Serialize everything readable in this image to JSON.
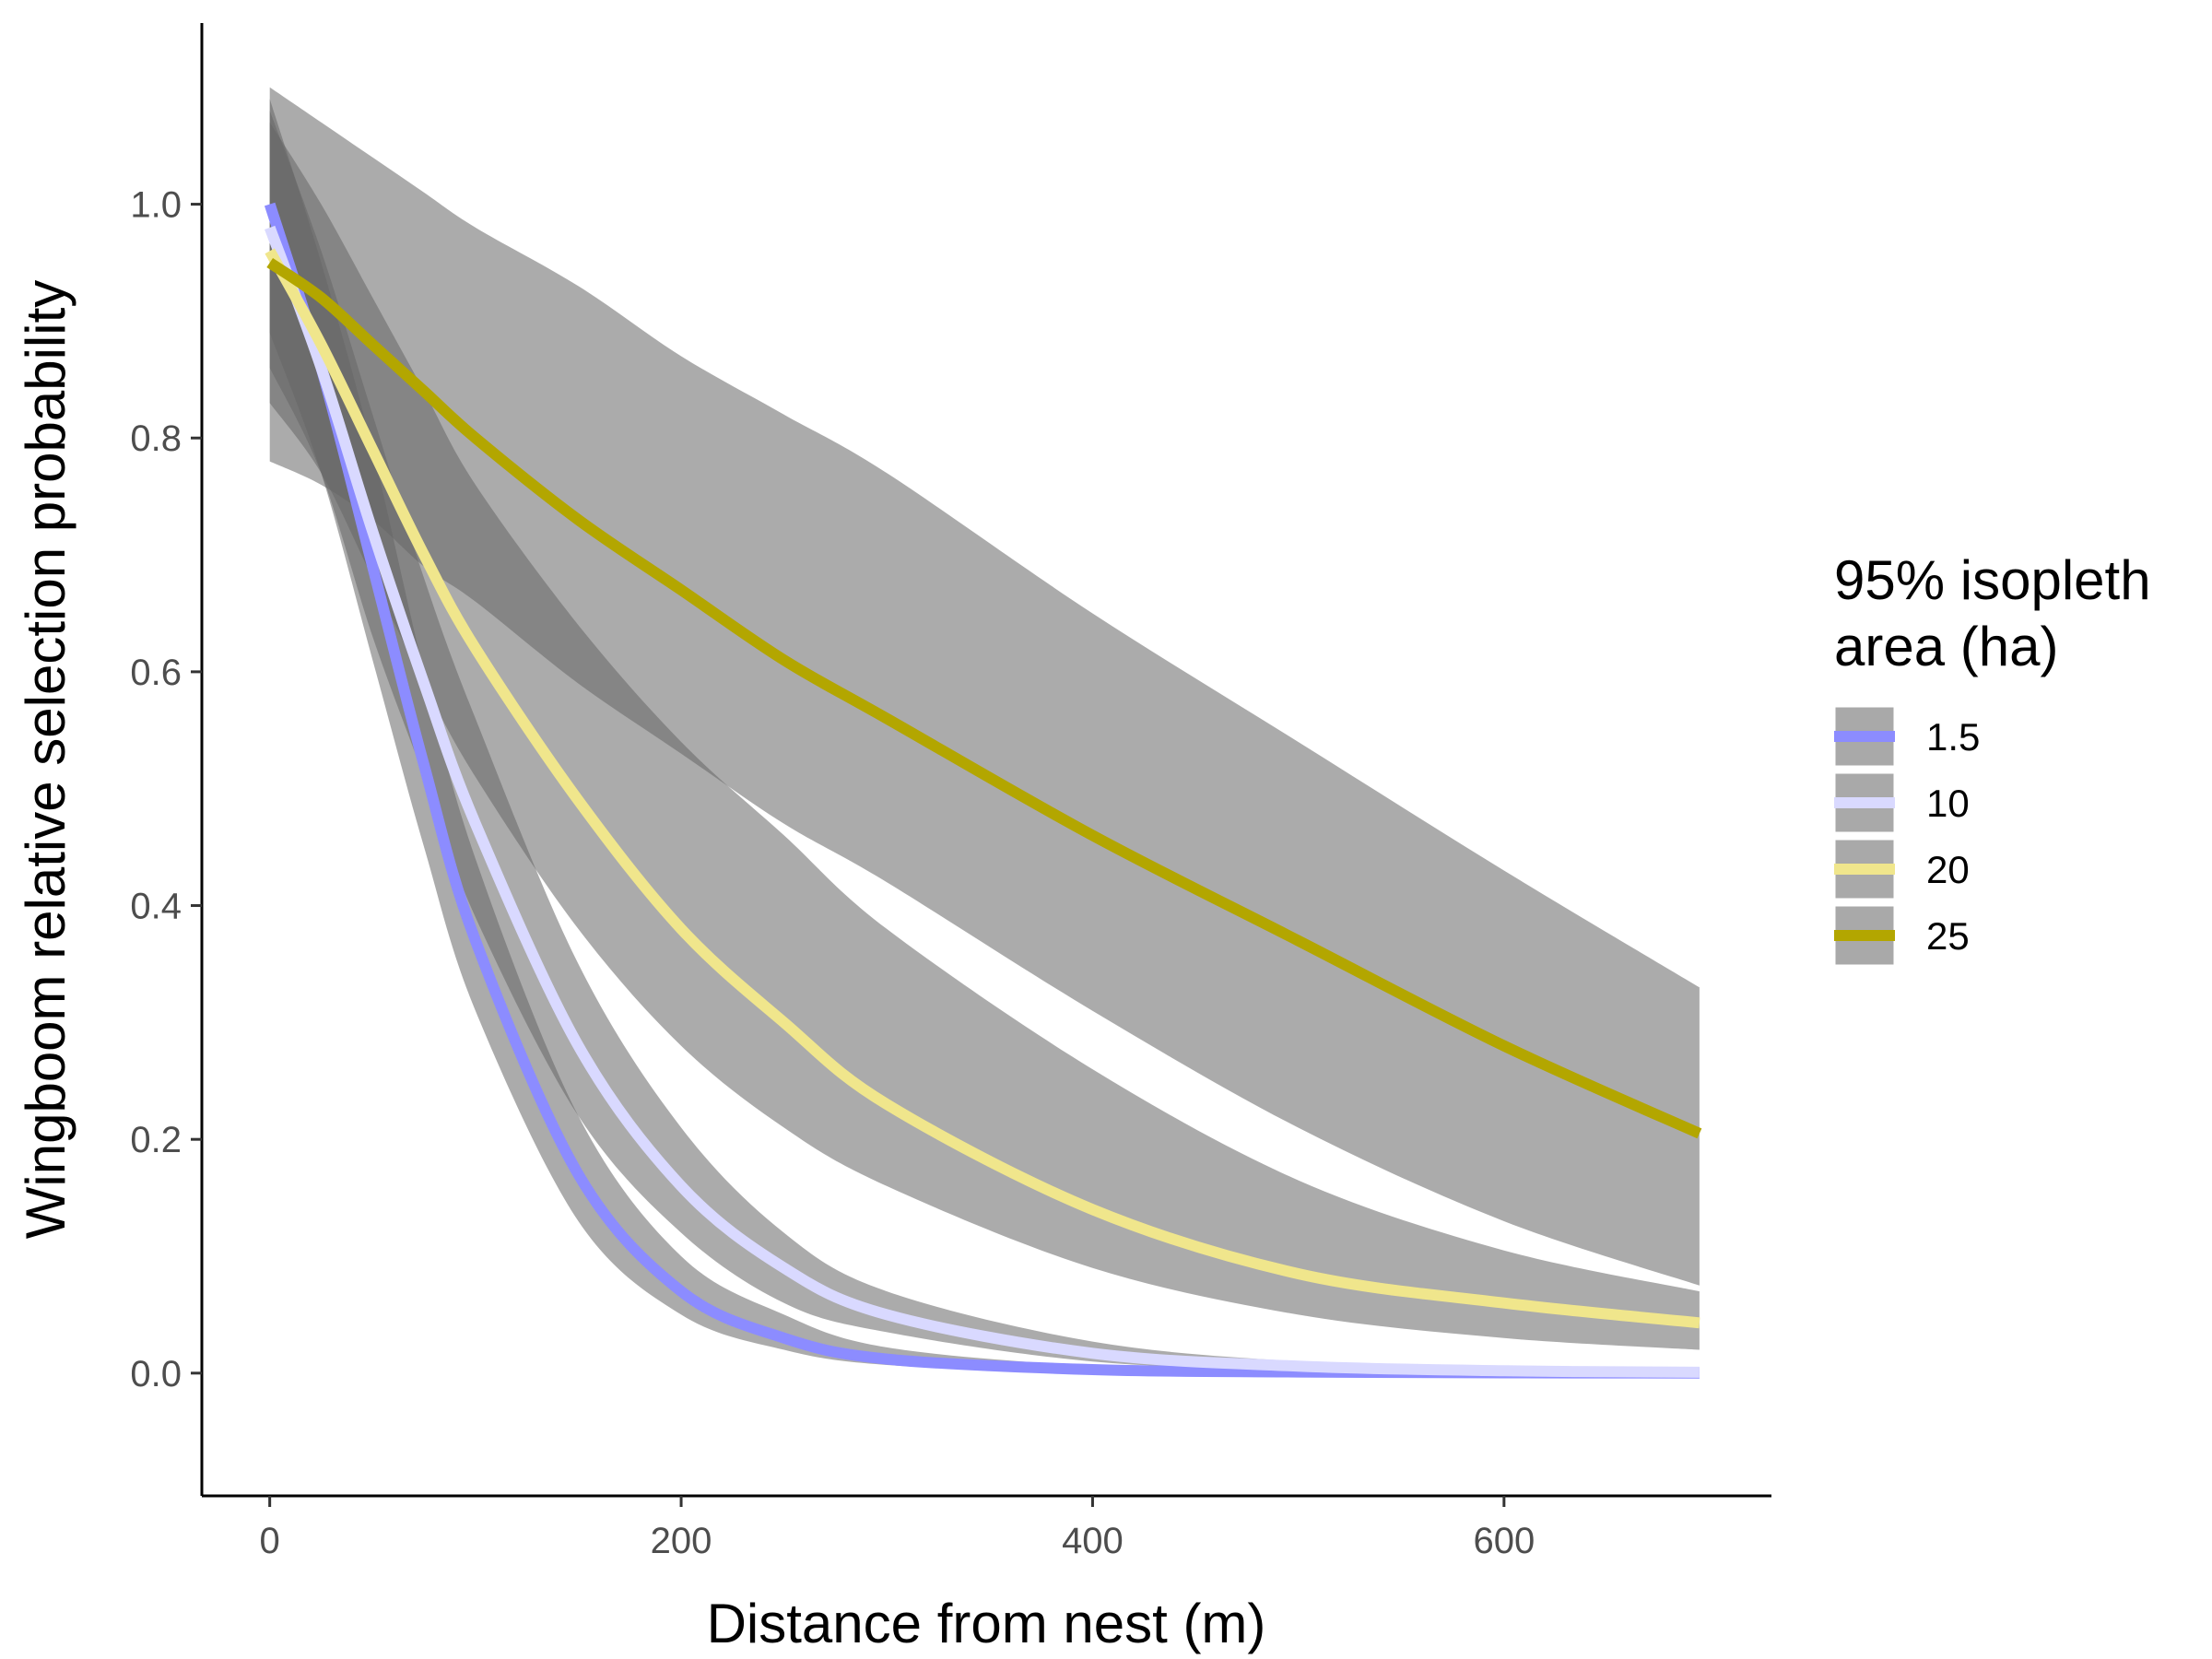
{
  "chart_data": {
    "type": "line",
    "xlabel": "Distance from nest (m)",
    "ylabel": "Wingboom relative selection probability",
    "xlim": [
      -33,
      730
    ],
    "ylim": [
      -0.105,
      1.155
    ],
    "xticks": [
      0,
      200,
      400,
      600
    ],
    "yticks": [
      0.0,
      0.2,
      0.4,
      0.6,
      0.8,
      1.0
    ],
    "xtick_labels": [
      "0",
      "200",
      "400",
      "600"
    ],
    "ytick_labels": [
      "0.0",
      "0.2",
      "0.4",
      "0.6",
      "0.8",
      "1.0"
    ],
    "grid": false,
    "legend": {
      "title_lines": [
        "95% isopleth",
        "area (ha)"
      ],
      "placement": "right"
    },
    "band_color": "#666666",
    "x": [
      0,
      25,
      50,
      75,
      100,
      150,
      200,
      250,
      300,
      400,
      500,
      600,
      695
    ],
    "series": [
      {
        "name": "1.5",
        "color": "#8c8cff",
        "values": [
          1.0,
          0.86,
          0.69,
          0.52,
          0.37,
          0.17,
          0.07,
          0.03,
          0.012,
          0.003,
          0.001,
          0.0003,
          0.0001
        ],
        "lower": [
          0.89,
          0.77,
          0.61,
          0.45,
          0.31,
          0.13,
          0.05,
          0.02,
          0.007,
          0.001,
          0.0003,
          0.0001,
          0.0
        ],
        "upper": [
          1.09,
          0.95,
          0.79,
          0.6,
          0.44,
          0.22,
          0.1,
          0.05,
          0.022,
          0.006,
          0.002,
          0.0006,
          0.0002
        ]
      },
      {
        "name": "10",
        "color": "#d9d9ff",
        "values": [
          0.98,
          0.86,
          0.72,
          0.59,
          0.47,
          0.28,
          0.16,
          0.09,
          0.05,
          0.017,
          0.006,
          0.002,
          0.0007
        ],
        "lower": [
          0.86,
          0.77,
          0.63,
          0.51,
          0.39,
          0.22,
          0.12,
          0.06,
          0.035,
          0.01,
          0.003,
          0.001,
          0.0003
        ],
        "upper": [
          1.08,
          0.96,
          0.82,
          0.68,
          0.56,
          0.35,
          0.21,
          0.12,
          0.07,
          0.027,
          0.01,
          0.004,
          0.0014
        ]
      },
      {
        "name": "20",
        "color": "#f0e68c",
        "values": [
          0.96,
          0.88,
          0.79,
          0.7,
          0.62,
          0.49,
          0.38,
          0.3,
          0.23,
          0.14,
          0.085,
          0.06,
          0.043
        ],
        "lower": [
          0.83,
          0.77,
          0.68,
          0.59,
          0.51,
          0.38,
          0.28,
          0.21,
          0.16,
          0.09,
          0.05,
          0.03,
          0.02
        ],
        "upper": [
          1.07,
          1.0,
          0.92,
          0.84,
          0.76,
          0.64,
          0.54,
          0.46,
          0.38,
          0.26,
          0.165,
          0.105,
          0.07
        ]
      },
      {
        "name": "25",
        "color": "#b3a600",
        "values": [
          0.95,
          0.92,
          0.88,
          0.84,
          0.8,
          0.73,
          0.67,
          0.61,
          0.56,
          0.46,
          0.37,
          0.28,
          0.205
        ],
        "lower": [
          0.78,
          0.76,
          0.73,
          0.69,
          0.66,
          0.59,
          0.53,
          0.47,
          0.42,
          0.31,
          0.21,
          0.13,
          0.075
        ],
        "upper": [
          1.1,
          1.07,
          1.04,
          1.01,
          0.98,
          0.93,
          0.87,
          0.82,
          0.77,
          0.65,
          0.54,
          0.43,
          0.33
        ]
      }
    ]
  }
}
